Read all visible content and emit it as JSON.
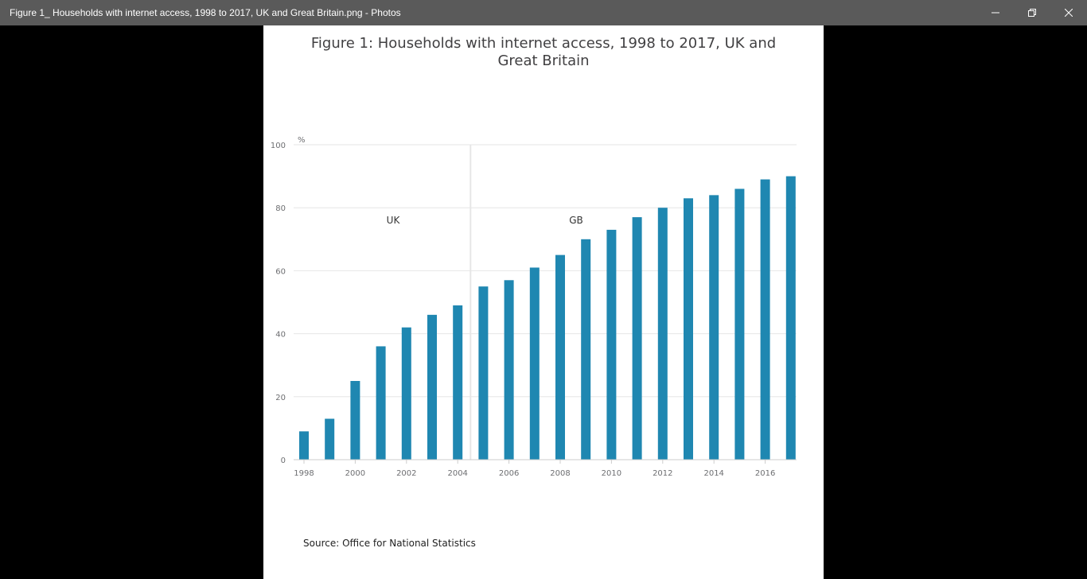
{
  "window": {
    "title": "Figure 1_ Households with internet access, 1998 to 2017, UK and Great Britain.png - Photos"
  },
  "colors": {
    "bar": "#1f87b1",
    "titlebar": "#5a5a5a",
    "gridline": "#e6e6e6",
    "axis_text": "#6d6e71"
  },
  "icons": [
    "minimize-icon",
    "restore-icon",
    "close-icon"
  ],
  "chart_data": {
    "type": "bar",
    "title": "Figure 1: Households with internet access, 1998 to 2017, UK and Great Britain",
    "ylabel": "%",
    "xlabel": "",
    "ylim": [
      0,
      100
    ],
    "yticks": [
      0,
      20,
      40,
      60,
      80,
      100
    ],
    "xtick_labels": [
      "1998",
      "2000",
      "2002",
      "2004",
      "2006",
      "2008",
      "2010",
      "2012",
      "2014",
      "2016"
    ],
    "categories": [
      "1998",
      "1999",
      "2000",
      "2001",
      "2002",
      "2003",
      "2004",
      "2005",
      "2006",
      "2007",
      "2008",
      "2009",
      "2010",
      "2011",
      "2012",
      "2013",
      "2014",
      "2015",
      "2016",
      "2017"
    ],
    "values": [
      9,
      13,
      25,
      36,
      42,
      46,
      49,
      55,
      57,
      61,
      65,
      70,
      73,
      77,
      80,
      83,
      84,
      86,
      89,
      90
    ],
    "grid": true,
    "annotations": [
      {
        "text": "UK"
      },
      {
        "text": "GB"
      }
    ],
    "source": "Source: Office for National Statistics"
  }
}
